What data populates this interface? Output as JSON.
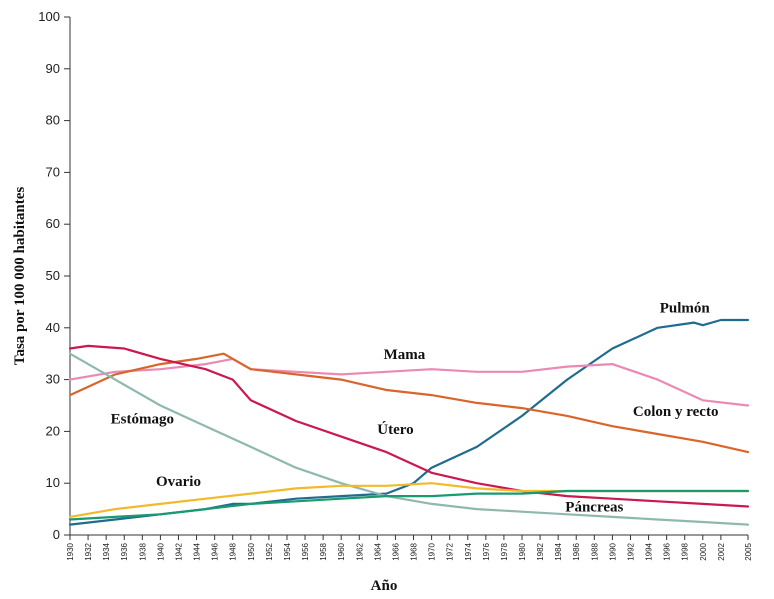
{
  "chart_data": {
    "type": "line",
    "xlabel": "Año",
    "ylabel": "Tasa por 100 000 habitantes",
    "xlim": [
      1930,
      2005
    ],
    "ylim": [
      0,
      100
    ],
    "y_ticks": [
      0,
      10,
      20,
      30,
      40,
      50,
      60,
      70,
      80,
      90,
      100
    ],
    "x_ticks": [
      "1930",
      "1932",
      "1934",
      "1936",
      "1938",
      "1940",
      "1942",
      "1944",
      "1946",
      "1948",
      "1950",
      "1952",
      "1954",
      "1956",
      "1958",
      "1960",
      "1962",
      "1964",
      "1966",
      "1968",
      "1970",
      "1972",
      "1974",
      "1976",
      "1978",
      "1980",
      "1982",
      "1984",
      "1986",
      "1988",
      "1990",
      "1992",
      "1994",
      "1996",
      "1998",
      "2000",
      "2002",
      "2005"
    ],
    "grid": false,
    "legend": "none",
    "series": [
      {
        "name": "Pulmón",
        "color": "#1f6c8f",
        "x": [
          1930,
          1935,
          1940,
          1945,
          1948,
          1950,
          1955,
          1960,
          1965,
          1968,
          1970,
          1975,
          1980,
          1985,
          1990,
          1995,
          1999,
          2000,
          2002,
          2004,
          2005
        ],
        "values": [
          2,
          3,
          4,
          5,
          6,
          6,
          7,
          7.5,
          8,
          10,
          13,
          17,
          23,
          30,
          36,
          40,
          41,
          40.5,
          41.5,
          41.5,
          41.5
        ]
      },
      {
        "name": "Mama",
        "color": "#ea8ab3",
        "x": [
          1930,
          1935,
          1940,
          1945,
          1948,
          1950,
          1955,
          1960,
          1965,
          1970,
          1975,
          1980,
          1985,
          1990,
          1995,
          2000,
          2005
        ],
        "values": [
          30,
          31.5,
          32,
          33,
          34,
          32,
          31.5,
          31,
          31.5,
          32,
          31.5,
          31.5,
          32.5,
          33,
          30,
          26,
          25
        ]
      },
      {
        "name": "Colon y recto",
        "color": "#d9652b",
        "x": [
          1930,
          1935,
          1940,
          1944,
          1947,
          1950,
          1955,
          1960,
          1965,
          1970,
          1975,
          1980,
          1985,
          1990,
          1995,
          2000,
          2005
        ],
        "values": [
          27,
          31,
          33,
          34,
          35,
          32,
          31,
          30,
          28,
          27,
          25.5,
          24.5,
          23,
          21,
          19.5,
          18,
          16
        ]
      },
      {
        "name": "Útero",
        "color": "#c9194f",
        "x": [
          1930,
          1932,
          1936,
          1940,
          1945,
          1948,
          1950,
          1955,
          1960,
          1965,
          1970,
          1975,
          1980,
          1985,
          1990,
          1995,
          2000,
          2005
        ],
        "values": [
          36,
          36.5,
          36,
          34,
          32,
          30,
          26,
          22,
          19,
          16,
          12,
          10,
          8.5,
          7.5,
          7,
          6.5,
          6,
          5.5
        ]
      },
      {
        "name": "Estómago",
        "color": "#8fb8ae",
        "x": [
          1930,
          1935,
          1940,
          1945,
          1950,
          1955,
          1960,
          1965,
          1970,
          1975,
          1980,
          1985,
          1990,
          1995,
          2000,
          2005
        ],
        "values": [
          35,
          30,
          25,
          21,
          17,
          13,
          10,
          7.5,
          6,
          5,
          4.5,
          4,
          3.5,
          3,
          2.5,
          2
        ]
      },
      {
        "name": "Ovario",
        "color": "#f2b92a",
        "x": [
          1930,
          1935,
          1940,
          1945,
          1950,
          1955,
          1960,
          1965,
          1970,
          1975,
          1980,
          1985,
          1990,
          1995,
          2000,
          2005
        ],
        "values": [
          3.5,
          5,
          6,
          7,
          8,
          9,
          9.5,
          9.5,
          10,
          9,
          8.5,
          8.5,
          8.5,
          8.5,
          8.5,
          8.5
        ]
      },
      {
        "name": "Páncreas",
        "color": "#1a9a6f",
        "x": [
          1930,
          1935,
          1940,
          1945,
          1950,
          1955,
          1960,
          1965,
          1970,
          1975,
          1980,
          1985,
          1990,
          1995,
          2000,
          2005
        ],
        "values": [
          3,
          3.5,
          4,
          5,
          6,
          6.5,
          7,
          7.5,
          7.5,
          8,
          8,
          8.5,
          8.5,
          8.5,
          8.5,
          8.5
        ]
      }
    ],
    "annotations": [
      {
        "text": "Pulmón",
        "x": 1998,
        "y": 43
      },
      {
        "text": "Mama",
        "x": 1967,
        "y": 34
      },
      {
        "text": "Colon y recto",
        "x": 1997,
        "y": 23
      },
      {
        "text": "Útero",
        "x": 1966,
        "y": 19.5
      },
      {
        "text": "Estómago",
        "x": 1938,
        "y": 21.5
      },
      {
        "text": "Ovario",
        "x": 1942,
        "y": 9.5
      },
      {
        "text": "Páncreas",
        "x": 1988,
        "y": 4.5
      }
    ]
  }
}
